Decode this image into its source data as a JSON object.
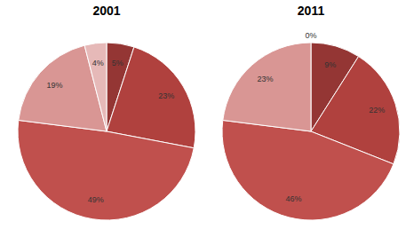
{
  "chart_data": [
    {
      "type": "pie",
      "title": "2001",
      "values": [
        5,
        23,
        49,
        19,
        4
      ],
      "value_labels": [
        "5%",
        "23%",
        "49%",
        "19%",
        "4%"
      ],
      "colors": [
        "#943634",
        "#b0413e",
        "#c0504d",
        "#d99694",
        "#e6b9b8"
      ],
      "data_labels": true
    },
    {
      "type": "pie",
      "title": "2011",
      "values": [
        9,
        22,
        46,
        23,
        0
      ],
      "value_labels": [
        "9%",
        "22%",
        "46%",
        "23%",
        "0%"
      ],
      "colors": [
        "#943634",
        "#b0413e",
        "#c0504d",
        "#d99694",
        "#e6b9b8"
      ],
      "data_labels": true
    }
  ]
}
